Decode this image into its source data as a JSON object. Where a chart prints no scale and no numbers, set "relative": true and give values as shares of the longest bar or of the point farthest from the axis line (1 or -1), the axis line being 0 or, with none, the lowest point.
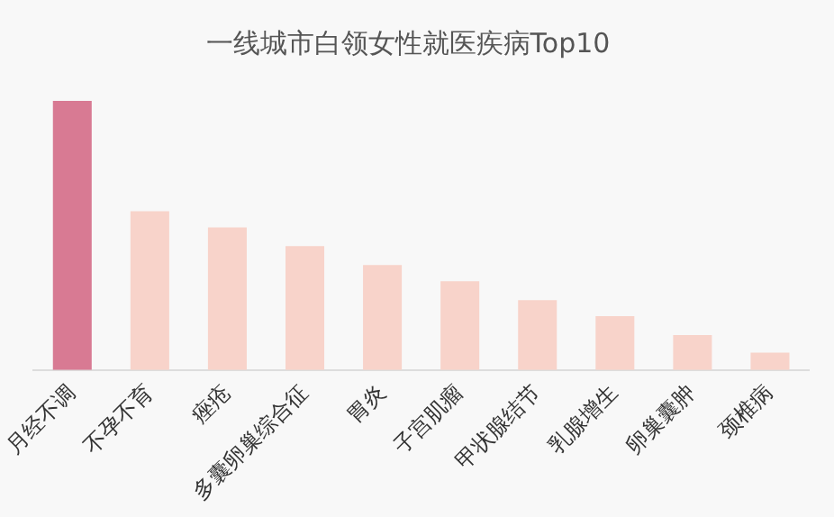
{
  "chart_data": {
    "type": "bar",
    "title": "一线城市白领女性就医疾病Top10",
    "categories": [
      "月经不调",
      "不孕不育",
      "痤疮",
      "多囊卵巢综合征",
      "胃炎",
      "子宫肌瘤",
      "甲状腺结节",
      "乳腺增生",
      "卵巢囊肿",
      "颈椎病"
    ],
    "values": [
      1,
      0.59,
      0.53,
      0.46,
      0.39,
      0.33,
      0.26,
      0.2,
      0.13,
      0.065
    ],
    "colors": [
      "#d87a93",
      "#f8d3ca",
      "#f8d3ca",
      "#f8d3ca",
      "#f8d3ca",
      "#f8d3ca",
      "#f8d3ca",
      "#f8d3ca",
      "#f8d3ca",
      "#f8d3ca"
    ],
    "relative": true,
    "grid": false,
    "legend": false
  }
}
